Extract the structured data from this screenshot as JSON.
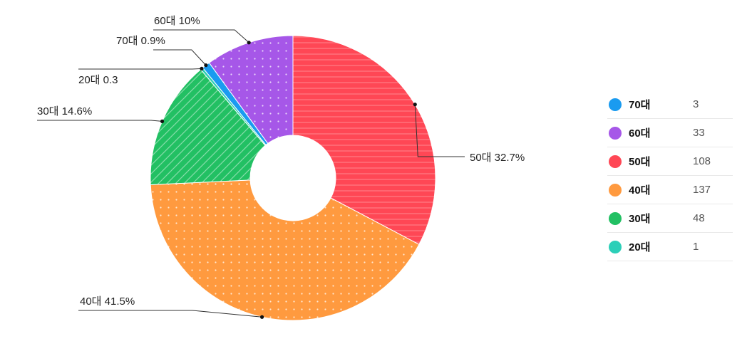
{
  "chart_data": {
    "type": "pie",
    "donut": true,
    "slices": [
      {
        "label": "70대",
        "value": 3,
        "color": "#1a9bf0",
        "pattern": "none",
        "callout": "70대 0.9%"
      },
      {
        "label": "60대",
        "value": 33,
        "color": "#a657e8",
        "pattern": "dots",
        "callout": "60대 10%"
      },
      {
        "label": "50대",
        "value": 108,
        "color": "#ff4755",
        "pattern": "hlines",
        "callout": "50대 32.7%"
      },
      {
        "label": "40대",
        "value": 137,
        "color": "#ff9a3f",
        "pattern": "dots",
        "callout": "40대 41.5%"
      },
      {
        "label": "30대",
        "value": 48,
        "color": "#22c063",
        "pattern": "diag",
        "callout": "30대 14.6%"
      },
      {
        "label": "20대",
        "value": 1,
        "color": "#2ccfb8",
        "pattern": "none",
        "callout": "20대 0.3"
      }
    ],
    "legend_position": "right"
  }
}
